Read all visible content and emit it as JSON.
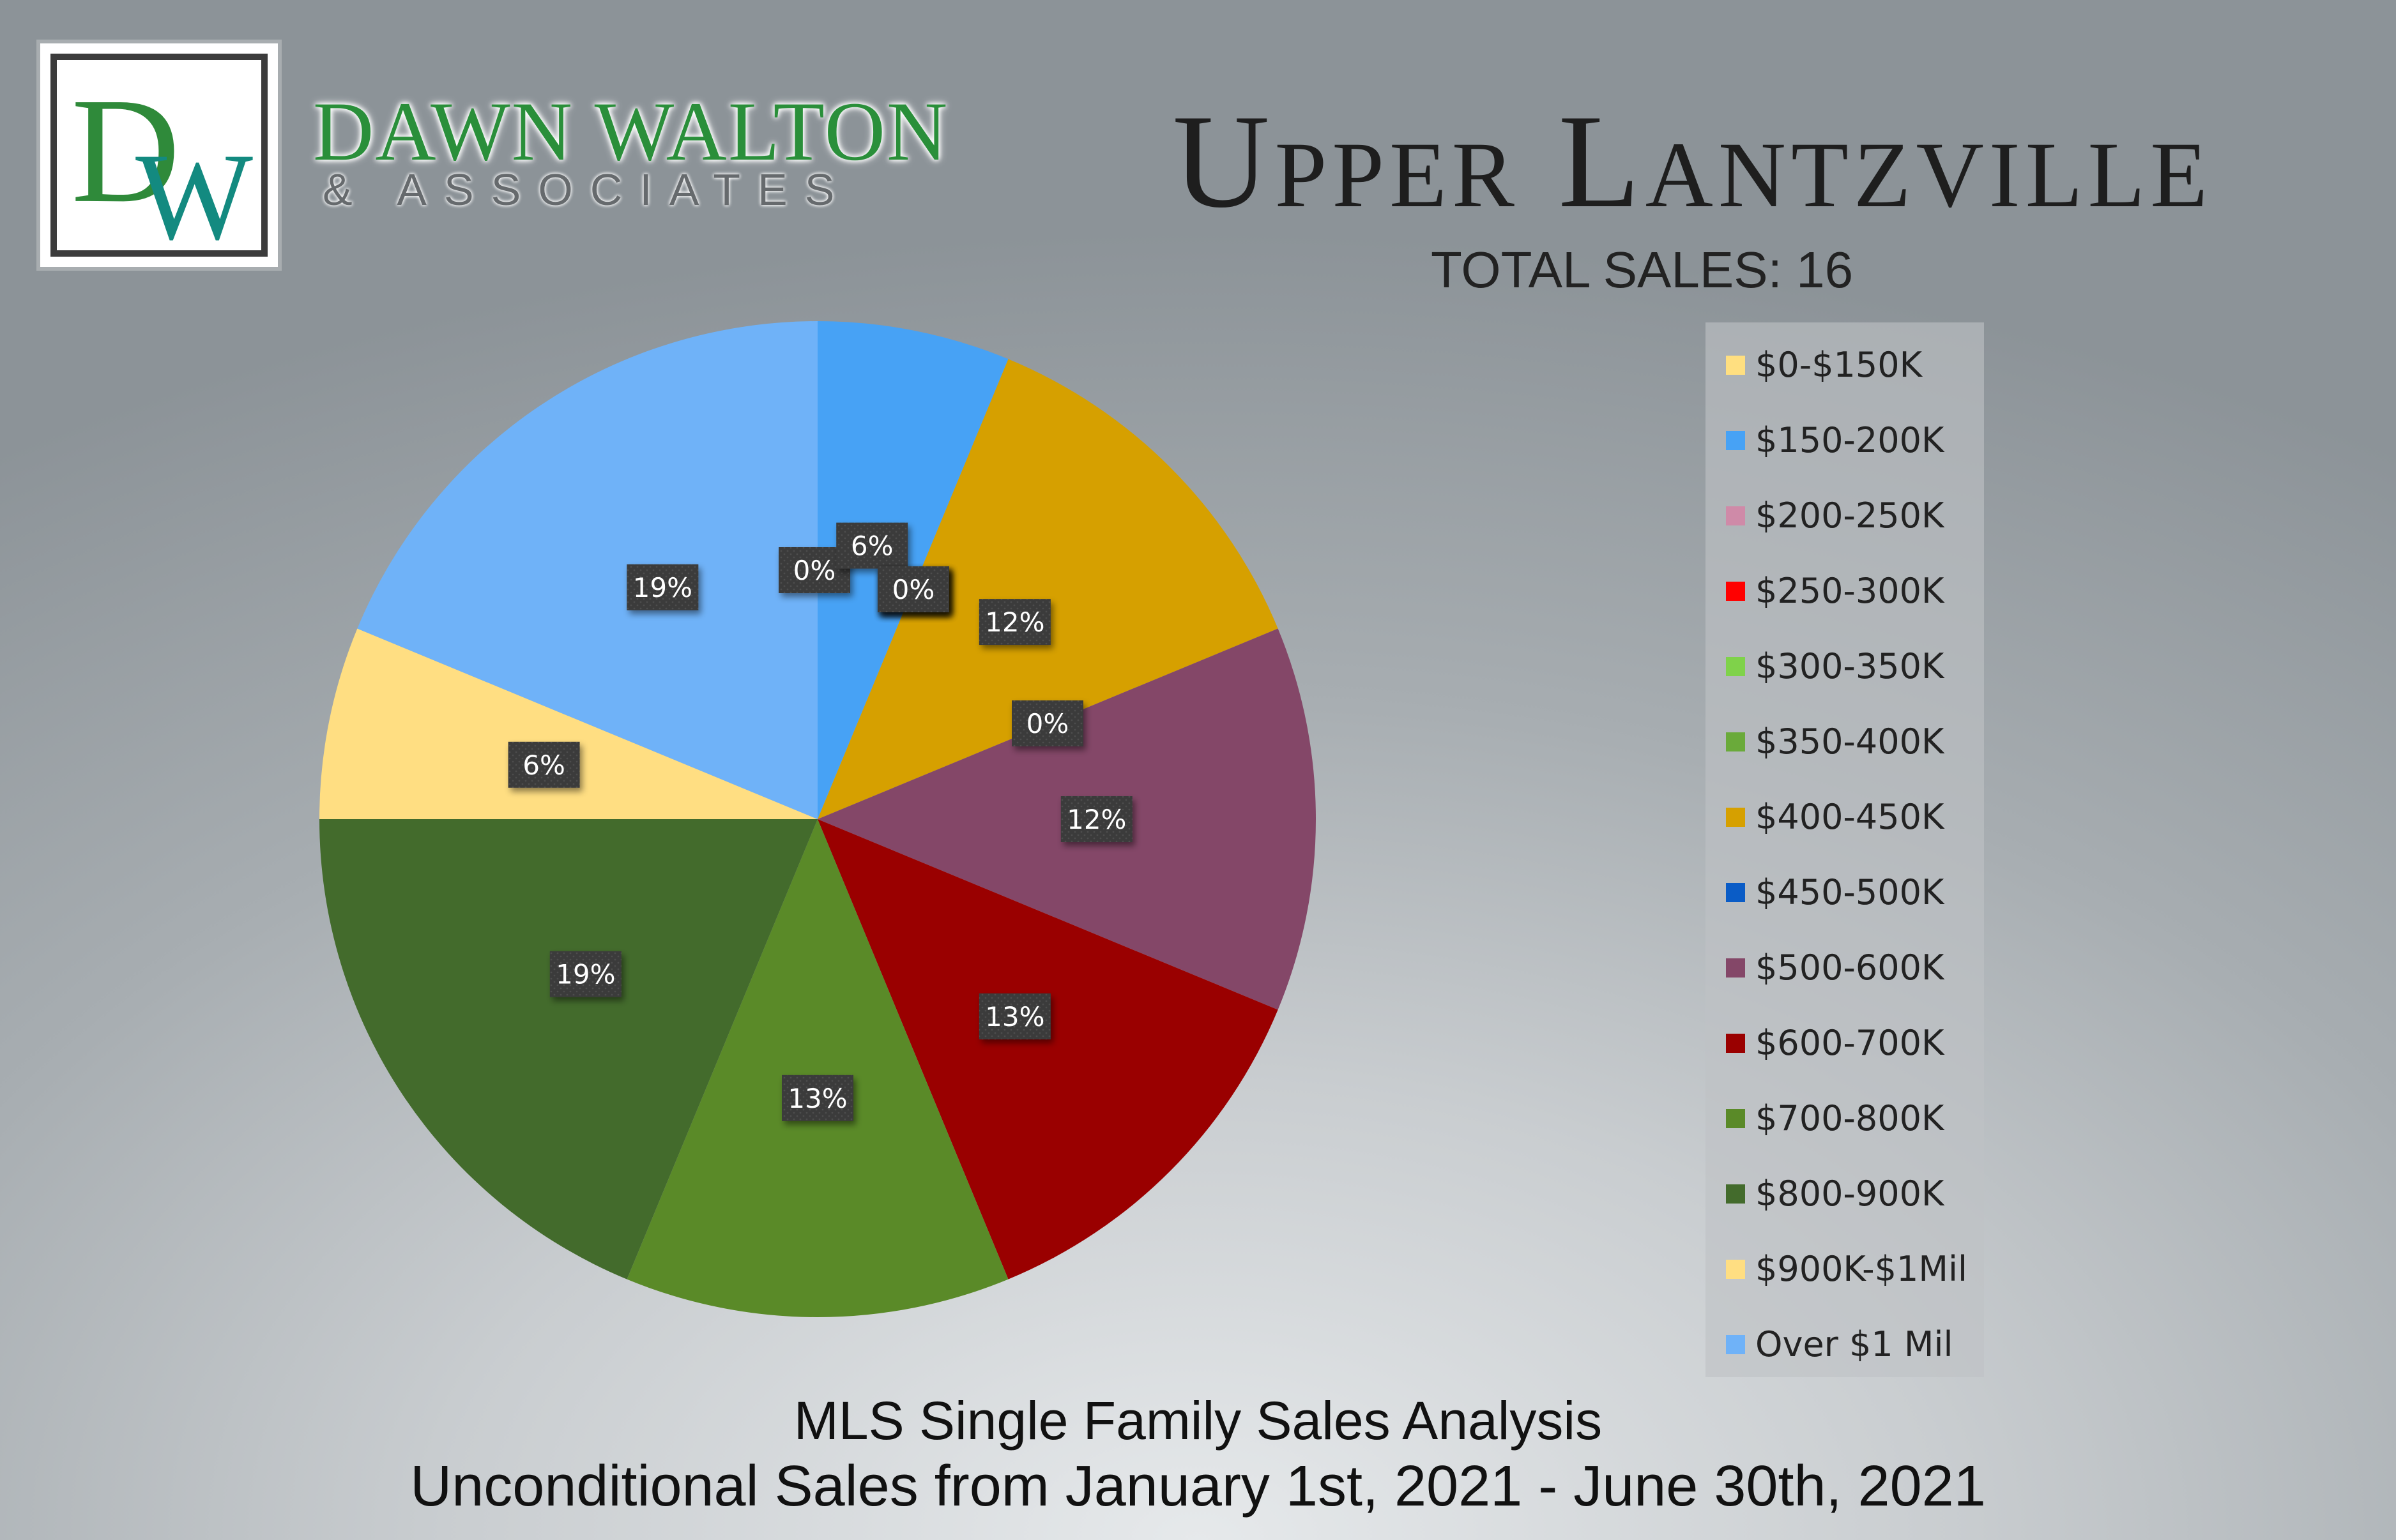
{
  "logo": {
    "monogram": "DW",
    "name": "DAWN WALTON",
    "subtitle": "& ASSOCIATES"
  },
  "header": {
    "title": "Upper Lantzville",
    "total_sales": "TOTAL SALES: 16"
  },
  "footer": {
    "line1": "MLS Single Family Sales Analysis",
    "line2": "Unconditional Sales from January 1st, 2021 - June 30th, 2021"
  },
  "chart_data": {
    "type": "pie",
    "categories": [
      "$0-$150K",
      "$150-200K",
      "$200-250K",
      "$250-300K",
      "$300-350K",
      "$350-400K",
      "$400-450K",
      "$450-500K",
      "$500-600K",
      "$600-700K",
      "$700-800K",
      "$800-900K",
      "$900K-$1Mil",
      "Over $1 Mil"
    ],
    "values": [
      0,
      1,
      0,
      0,
      0,
      0,
      2,
      0,
      2,
      2,
      2,
      3,
      1,
      3
    ],
    "labels": [
      "0%",
      "6%",
      "0%",
      "0%",
      "0%",
      "0%",
      "12%",
      "0%",
      "12%",
      "13%",
      "13%",
      "19%",
      "6%",
      "19%"
    ],
    "colors": [
      "#ffdf80",
      "#47a2f5",
      "#cf8aa8",
      "#ff0000",
      "#7fd24a",
      "#6aaa3a",
      "#d6a000",
      "#0a5cc6",
      "#844768",
      "#9a0000",
      "#5a8a28",
      "#436b2c",
      "#ffde82",
      "#6fb2f8"
    ],
    "legend_position": "right",
    "start": "top, clockwise"
  }
}
